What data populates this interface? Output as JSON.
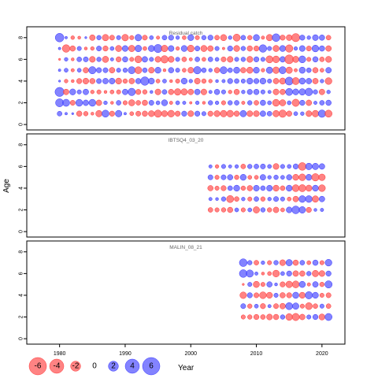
{
  "chart_data": {
    "type": "scatter",
    "subtype": "bubble",
    "ylabel": "Age",
    "xlabel": "Year",
    "colors": {
      "negative": "#ff5a5a",
      "positive": "#5a5aff",
      "negative_stroke": "#ff3333",
      "positive_stroke": "#3333ff"
    },
    "xlim": [
      1975,
      2023.5
    ],
    "x_ticks": [
      1980,
      1990,
      2000,
      2010,
      2020
    ],
    "y_ticks": [
      0,
      2,
      4,
      6,
      8
    ],
    "ylim": [
      -0.5,
      9
    ],
    "bubble_legend": {
      "values": [
        -6,
        -4,
        -2,
        0,
        2,
        4,
        6
      ],
      "labels": [
        "-6",
        "-4",
        "-2",
        "0",
        "2",
        "4",
        "6"
      ]
    },
    "panels": [
      {
        "title": "Residual catch",
        "years": [
          1980,
          2021
        ],
        "ages": [
          1,
          2,
          3,
          4,
          5,
          6,
          7,
          8
        ],
        "residuals_by_age": {
          "8": [
            3.2,
            0.3,
            -0.6,
            -0.4,
            0.2,
            -1.4,
            0.9,
            -1.8,
            -1.1,
            0.8,
            -1.9,
            -0.8,
            1.9,
            -1.1,
            0.7,
            -0.5,
            1.0,
            1.2,
            0.6,
            -0.7,
            1.6,
            -0.8,
            0.9,
            1.2,
            -1.0,
            -1.7,
            0.6,
            -2.2,
            1.0,
            -0.9,
            1.7,
            -0.5,
            -1.8,
            2.6,
            -1.2,
            -1.5,
            -2.9,
            1.2,
            0.6,
            1.5,
            1.3,
            -1.0
          ],
          "7": [
            0.3,
            -2.5,
            -1.3,
            0.8,
            -0.4,
            -0.6,
            1.1,
            -1.2,
            0.7,
            -1.7,
            1.5,
            -1.8,
            1.9,
            -0.7,
            1.7,
            2.9,
            -1.9,
            1.5,
            -0.6,
            1.6,
            -2.0,
            1.1,
            -1.7,
            -1.4,
            0.8,
            -0.3,
            1.2,
            -1.6,
            0.9,
            -1.3,
            -1.2,
            2.5,
            0.8,
            -1.7,
            1.6,
            -2.4,
            0.6,
            1.5,
            -1.1,
            2.0,
            1.3,
            -1.4
          ],
          "6": [
            -0.2,
            0.6,
            -0.4,
            1.0,
            1.1,
            -1.5,
            0.9,
            -1.7,
            0.5,
            -1.2,
            1.3,
            -0.8,
            -2.1,
            1.4,
            0.8,
            -1.5,
            -2.4,
            -1.6,
            0.8,
            -1.0,
            -0.5,
            1.0,
            -0.7,
            1.0,
            0.7,
            -1.1,
            -1.5,
            0.8,
            0.9,
            -1.6,
            1.2,
            0.8,
            -2.2,
            -2.0,
            1.4,
            -3.4,
            -1.7,
            2.1,
            -0.8,
            1.3,
            -1.0,
            -1.6
          ],
          "5": [
            0.3,
            0.7,
            -0.5,
            0.7,
            -1.3,
            2.3,
            1.2,
            1.1,
            -1.4,
            0.8,
            0.9,
            2.2,
            -2.1,
            1.0,
            -1.5,
            1.6,
            -0.4,
            1.3,
            0.8,
            -0.7,
            -1.5,
            2.4,
            1.0,
            0.6,
            -1.3,
            2.2,
            1.0,
            1.7,
            -1.3,
            -1.7,
            1.6,
            -0.6,
            1.8,
            -1.9,
            2.2,
            -1.8,
            -0.5,
            1.7,
            1.0,
            -1.3,
            -0.7,
            1.4
          ],
          "4": [
            0.2,
            -0.6,
            -0.4,
            -1.2,
            -1.5,
            -1.3,
            1.1,
            1.4,
            1.5,
            -1.6,
            -0.9,
            -1.4,
            1.3,
            3.1,
            1.6,
            -0.7,
            0.7,
            -0.4,
            -0.8,
            1.6,
            0.6,
            -1.5,
            -0.9,
            -0.6,
            0.4,
            0.5,
            1.2,
            1.0,
            0.8,
            1.6,
            1.2,
            1.6,
            0.8,
            -1.4,
            -1.7,
            2.8,
            -2.2,
            1.7,
            1.4,
            -1.4,
            0.6,
            -2.0
          ],
          "3": [
            3.6,
            -1.4,
            1.6,
            0.8,
            1.4,
            -0.6,
            -0.8,
            -0.4,
            -0.7,
            -0.8,
            1.4,
            2.4,
            -1.2,
            -0.9,
            0.4,
            -1.5,
            1.0,
            -1.3,
            -1.9,
            -1.8,
            -1.4,
            1.4,
            -1.5,
            0.5,
            1.3,
            0.8,
            -0.6,
            -1.3,
            0.6,
            1.2,
            1.3,
            0.8,
            0.5,
            -1.5,
            -1.3,
            2.2,
            1.6,
            1.8,
            2.5,
            0.9,
            -1.4,
            0.6
          ],
          "2": [
            2.8,
            2.2,
            -1.1,
            2.1,
            1.4,
            2.1,
            -1.4,
            0.6,
            -0.4,
            1.0,
            -0.8,
            -1.7,
            -1.0,
            -1.3,
            1.1,
            0.7,
            1.6,
            -0.5,
            0.7,
            0.5,
            -0.3,
            0.6,
            -0.4,
            0.9,
            0.6,
            -0.8,
            0.9,
            1.0,
            -0.5,
            0.9,
            -1.0,
            1.3,
            0.7,
            -2.1,
            -1.7,
            0.7,
            -2.3,
            1.2,
            -1.4,
            0.5,
            1.0,
            1.3
          ],
          "1": [
            1.0,
            0.3,
            0.2,
            -1.3,
            -0.9,
            -0.4,
            -1.8,
            2.2,
            -1.2,
            1.9,
            0.3,
            -0.7,
            -1.1,
            -1.3,
            -1.6,
            -2.3,
            -1.6,
            -2.0,
            -1.2,
            1.2,
            -1.5,
            1.2,
            0.8,
            -1.2,
            -1.6,
            -1.9,
            -2.0,
            -1.3,
            1.8,
            -1.5,
            -1.5,
            1.4,
            1.0,
            -1.8,
            -2.4,
            -1.3,
            0.7,
            0.6,
            -1.5,
            -1.9,
            2.4,
            -2.2
          ]
        }
      },
      {
        "title": "IBTSQ4_03_20",
        "years": [
          2003,
          2020
        ],
        "ages": [
          2,
          3,
          4,
          5,
          6
        ],
        "residuals_by_age": {
          "6": [
            0.5,
            -0.6,
            0.8,
            0.5,
            0.6,
            -1.0,
            0.9,
            1.0,
            1.1,
            0.7,
            -1.5,
            0.8,
            0.7,
            1.2,
            -2.6,
            1.9,
            1.8,
            1.4
          ],
          "5": [
            1.1,
            -0.8,
            1.1,
            1.3,
            -0.9,
            1.6,
            -0.7,
            -0.7,
            1.4,
            0.6,
            0.9,
            0.7,
            1.3,
            -1.6,
            -2.0,
            1.6,
            -2.4,
            -1.9
          ],
          "4": [
            -1.3,
            -0.8,
            -1.2,
            1.0,
            1.6,
            -0.9,
            -1.3,
            1.5,
            1.0,
            1.5,
            -1.6,
            -1.0,
            1.6,
            -2.1,
            -2.2,
            -1.7,
            1.6,
            -2.0
          ],
          "3": [
            0.5,
            0.4,
            0.9,
            -2.2,
            -1.0,
            0.6,
            -0.8,
            1.0,
            -0.9,
            0.6,
            1.1,
            0.8,
            -0.7,
            -1.4,
            2.0,
            2.0,
            -1.8,
            1.4
          ],
          "2": [
            -1.0,
            -0.8,
            -0.9,
            -1.3,
            0.7,
            -0.8,
            0.7,
            -1.8,
            0.9,
            -0.9,
            -1.4,
            -0.7,
            1.5,
            2.6,
            1.9,
            -1.2,
            0.4,
            0.5
          ]
        }
      },
      {
        "title": "MALIN_08_21",
        "years": [
          2008,
          2021
        ],
        "ages": [
          2,
          3,
          4,
          5,
          6,
          7
        ],
        "residuals_by_age": {
          "7": [
            2.6,
            0.9,
            -1.0,
            0.6,
            -0.8,
            0.9,
            -1.5,
            1.8,
            -1.3,
            1.0,
            -0.7,
            1.3,
            -0.8,
            2.0
          ],
          "6": [
            2.6,
            2.3,
            0.5,
            -0.4,
            -0.7,
            -2.0,
            0.7,
            1.2,
            -1.4,
            -1.3,
            0.9,
            -1.8,
            -1.5,
            1.2
          ],
          "5": [
            -0.2,
            0.8,
            -1.7,
            -0.8,
            1.3,
            0.4,
            -1.2,
            -1.9,
            -2.1,
            1.7,
            -0.5,
            1.4,
            -0.9,
            2.3
          ],
          "4": [
            -1.9,
            1.2,
            -1.1,
            -2.0,
            -1.6,
            0.8,
            -1.3,
            -1.2,
            1.7,
            -1.6,
            2.3,
            1.6,
            -0.8,
            -1.1
          ],
          "3": [
            1.1,
            -0.9,
            0.7,
            -1.2,
            0.5,
            -1.1,
            -1.4,
            2.2,
            1.8,
            -0.8,
            -2.1,
            -1.0,
            0.8,
            -1.0
          ],
          "2": [
            -0.8,
            -0.9,
            -1.2,
            -1.0,
            -1.5,
            -1.3,
            0.9,
            -2.0,
            -2.3,
            -1.4,
            0.8,
            1.2,
            -1.6,
            2.2
          ]
        }
      }
    ]
  }
}
